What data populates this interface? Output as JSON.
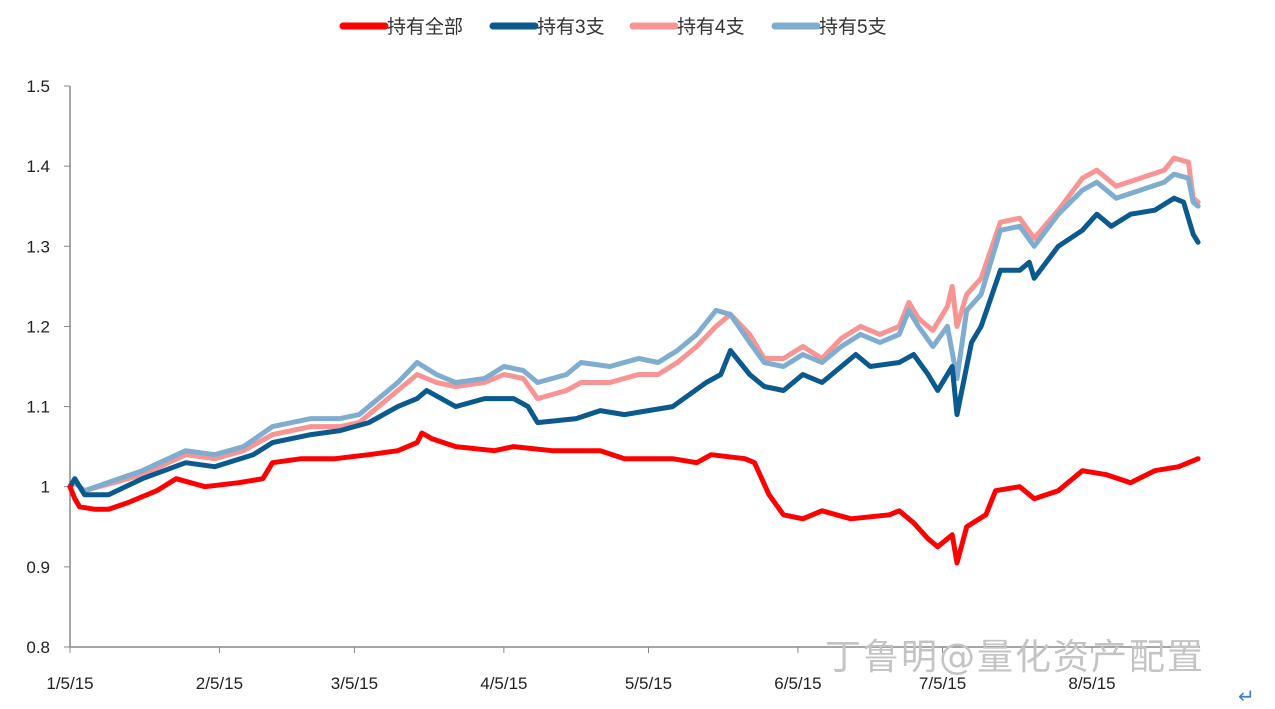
{
  "chart_data": {
    "type": "line",
    "title": "",
    "xlabel": "",
    "ylabel": "",
    "x_unit": "calendar days since 1/5/15",
    "xticks": [
      {
        "day": 0,
        "label": "1/5/15"
      },
      {
        "day": 31,
        "label": "2/5/15"
      },
      {
        "day": 59,
        "label": "3/5/15"
      },
      {
        "day": 90,
        "label": "4/5/15"
      },
      {
        "day": 120,
        "label": "5/5/15"
      },
      {
        "day": 151,
        "label": "6/5/15"
      },
      {
        "day": 181,
        "label": "7/5/15"
      },
      {
        "day": 212,
        "label": "8/5/15"
      }
    ],
    "xlim": [
      0,
      234
    ],
    "ylim": [
      0.8,
      1.5
    ],
    "yticks": [
      "0.8",
      "0.9",
      "1",
      "1.1",
      "1.2",
      "1.3",
      "1.4",
      "1.5"
    ],
    "grid": false,
    "legend_position": "top",
    "series": [
      {
        "name": "持有全部",
        "color": "#ff0000",
        "x": [
          0,
          1,
          2,
          5,
          8,
          12,
          18,
          22,
          28,
          35,
          40,
          42,
          48,
          55,
          62,
          68,
          72,
          73,
          75,
          80,
          88,
          92,
          100,
          110,
          115,
          125,
          130,
          133,
          140,
          142,
          145,
          148,
          152,
          156,
          162,
          170,
          172,
          175,
          178,
          180,
          183,
          184,
          186,
          190,
          192,
          197,
          200,
          205,
          210,
          215,
          220,
          225,
          230,
          234
        ],
        "y": [
          1.0,
          0.985,
          0.975,
          0.972,
          0.972,
          0.98,
          0.995,
          1.01,
          1.0,
          1.005,
          1.01,
          1.03,
          1.035,
          1.035,
          1.04,
          1.045,
          1.055,
          1.067,
          1.06,
          1.05,
          1.045,
          1.05,
          1.045,
          1.045,
          1.035,
          1.035,
          1.03,
          1.04,
          1.035,
          1.03,
          0.99,
          0.965,
          0.96,
          0.97,
          0.96,
          0.965,
          0.97,
          0.955,
          0.935,
          0.925,
          0.94,
          0.905,
          0.95,
          0.965,
          0.995,
          1.0,
          0.985,
          0.995,
          1.02,
          1.015,
          1.005,
          1.02,
          1.025,
          1.035
        ]
      },
      {
        "name": "持有3支",
        "color": "#0b5a8e",
        "x": [
          0,
          1,
          3,
          8,
          15,
          24,
          30,
          38,
          42,
          50,
          56,
          62,
          68,
          72,
          74,
          80,
          86,
          92,
          95,
          97,
          105,
          110,
          115,
          125,
          132,
          135,
          137,
          141,
          144,
          148,
          152,
          156,
          160,
          163,
          166,
          172,
          175,
          178,
          180,
          183,
          184,
          187,
          189,
          193,
          197,
          199,
          200,
          205,
          210,
          213,
          216,
          220,
          225,
          229,
          231,
          233,
          234
        ],
        "y": [
          1.0,
          1.01,
          0.99,
          0.99,
          1.01,
          1.03,
          1.025,
          1.04,
          1.055,
          1.065,
          1.07,
          1.08,
          1.1,
          1.11,
          1.12,
          1.1,
          1.11,
          1.11,
          1.1,
          1.08,
          1.085,
          1.095,
          1.09,
          1.1,
          1.13,
          1.14,
          1.17,
          1.14,
          1.125,
          1.12,
          1.14,
          1.13,
          1.15,
          1.165,
          1.15,
          1.155,
          1.165,
          1.14,
          1.12,
          1.15,
          1.09,
          1.18,
          1.2,
          1.27,
          1.27,
          1.28,
          1.26,
          1.3,
          1.32,
          1.34,
          1.325,
          1.34,
          1.345,
          1.36,
          1.355,
          1.315,
          1.305
        ]
      },
      {
        "name": "持有4支",
        "color": "#f79494",
        "x": [
          0,
          1,
          3,
          15,
          24,
          30,
          36,
          42,
          50,
          56,
          60,
          64,
          68,
          72,
          76,
          80,
          86,
          90,
          94,
          97,
          103,
          106,
          112,
          118,
          122,
          126,
          130,
          134,
          137,
          141,
          144,
          148,
          152,
          156,
          160,
          164,
          168,
          172,
          174,
          176,
          179,
          182,
          183,
          184,
          186,
          189,
          193,
          197,
          200,
          205,
          210,
          213,
          217,
          222,
          227,
          229,
          232,
          233,
          234
        ],
        "y": [
          1.0,
          1.005,
          0.995,
          1.015,
          1.04,
          1.035,
          1.045,
          1.065,
          1.075,
          1.075,
          1.08,
          1.1,
          1.12,
          1.14,
          1.13,
          1.125,
          1.13,
          1.14,
          1.135,
          1.11,
          1.12,
          1.13,
          1.13,
          1.14,
          1.14,
          1.155,
          1.175,
          1.2,
          1.215,
          1.19,
          1.16,
          1.16,
          1.175,
          1.16,
          1.185,
          1.2,
          1.19,
          1.2,
          1.23,
          1.21,
          1.195,
          1.225,
          1.25,
          1.2,
          1.24,
          1.26,
          1.33,
          1.335,
          1.31,
          1.345,
          1.385,
          1.395,
          1.375,
          1.385,
          1.395,
          1.41,
          1.405,
          1.36,
          1.355
        ]
      },
      {
        "name": "持有5支",
        "color": "#7fadcf",
        "x": [
          0,
          1,
          3,
          15,
          24,
          30,
          36,
          42,
          50,
          56,
          60,
          64,
          68,
          72,
          76,
          80,
          86,
          90,
          94,
          97,
          103,
          106,
          112,
          118,
          122,
          126,
          130,
          134,
          137,
          141,
          144,
          148,
          152,
          156,
          160,
          164,
          168,
          172,
          174,
          176,
          179,
          182,
          184,
          186,
          189,
          193,
          197,
          200,
          205,
          210,
          213,
          217,
          222,
          227,
          229,
          232,
          233,
          234
        ],
        "y": [
          1.0,
          1.005,
          0.995,
          1.02,
          1.045,
          1.04,
          1.05,
          1.075,
          1.085,
          1.085,
          1.09,
          1.11,
          1.13,
          1.155,
          1.14,
          1.13,
          1.135,
          1.15,
          1.145,
          1.13,
          1.14,
          1.155,
          1.15,
          1.16,
          1.155,
          1.17,
          1.19,
          1.22,
          1.215,
          1.18,
          1.155,
          1.15,
          1.165,
          1.155,
          1.175,
          1.19,
          1.18,
          1.19,
          1.22,
          1.2,
          1.175,
          1.2,
          1.135,
          1.22,
          1.24,
          1.32,
          1.325,
          1.3,
          1.34,
          1.37,
          1.38,
          1.36,
          1.37,
          1.38,
          1.39,
          1.385,
          1.355,
          1.35
        ]
      }
    ],
    "draw_order": [
      2,
      3,
      1,
      0
    ]
  },
  "watermark": "丁鲁明@量化资产配置",
  "return_symbol": "↵"
}
